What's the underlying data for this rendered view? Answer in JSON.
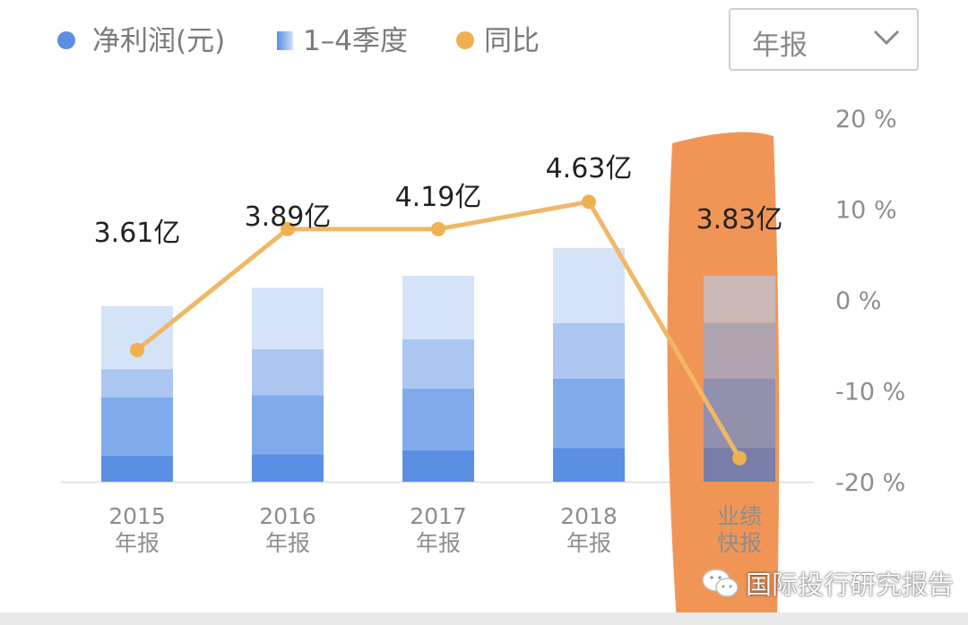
{
  "legend": {
    "profit_label": "净利润(元)",
    "quarters_label": "1–4季度",
    "yoy_label": "同比"
  },
  "period_select": {
    "value": "年报"
  },
  "watermark": {
    "text": "国际投行研究报告"
  },
  "colors": {
    "profit_dot": "#5a8fe3",
    "quarter_shades": [
      "#5b8fe4",
      "#80aaec",
      "#abc6f1",
      "#d5e3f8"
    ],
    "yoy_line": "#f0b866",
    "yoy_point": "#efb150",
    "highlight": "#f08a45"
  },
  "chart_data": {
    "type": "bar",
    "categories": [
      {
        "line1": "2015",
        "line2": "年报"
      },
      {
        "line1": "2016",
        "line2": "年报"
      },
      {
        "line1": "2017",
        "line2": "年报"
      },
      {
        "line1": "2018",
        "line2": "年报"
      },
      {
        "line1": "业绩",
        "line2": "快报"
      }
    ],
    "values": [
      3.61,
      3.89,
      4.19,
      4.63,
      3.83
    ],
    "value_labels": [
      "3.61亿",
      "3.89亿",
      "4.19亿",
      "4.63亿",
      "3.83亿"
    ],
    "quarter_cumulative": [
      [
        0.43,
        1.39,
        1.86,
        2.9
      ],
      [
        0.45,
        1.43,
        2.19,
        3.2
      ],
      [
        0.52,
        1.54,
        2.35,
        3.4
      ],
      [
        0.56,
        1.7,
        2.62,
        3.86
      ],
      [
        0.56,
        1.7,
        2.62,
        3.4
      ]
    ],
    "yoy_percent": [
      -5.5,
      7.8,
      7.8,
      10.8,
      -17.4
    ],
    "y_left_max": 6.0,
    "y_right": {
      "min": -20,
      "max": 20,
      "ticks": [
        20,
        10,
        0,
        -10,
        -20
      ],
      "tick_labels": [
        "20 %",
        "10 %",
        "0 %",
        "-10 %",
        "-20 %"
      ]
    },
    "highlighted_category": 4
  }
}
